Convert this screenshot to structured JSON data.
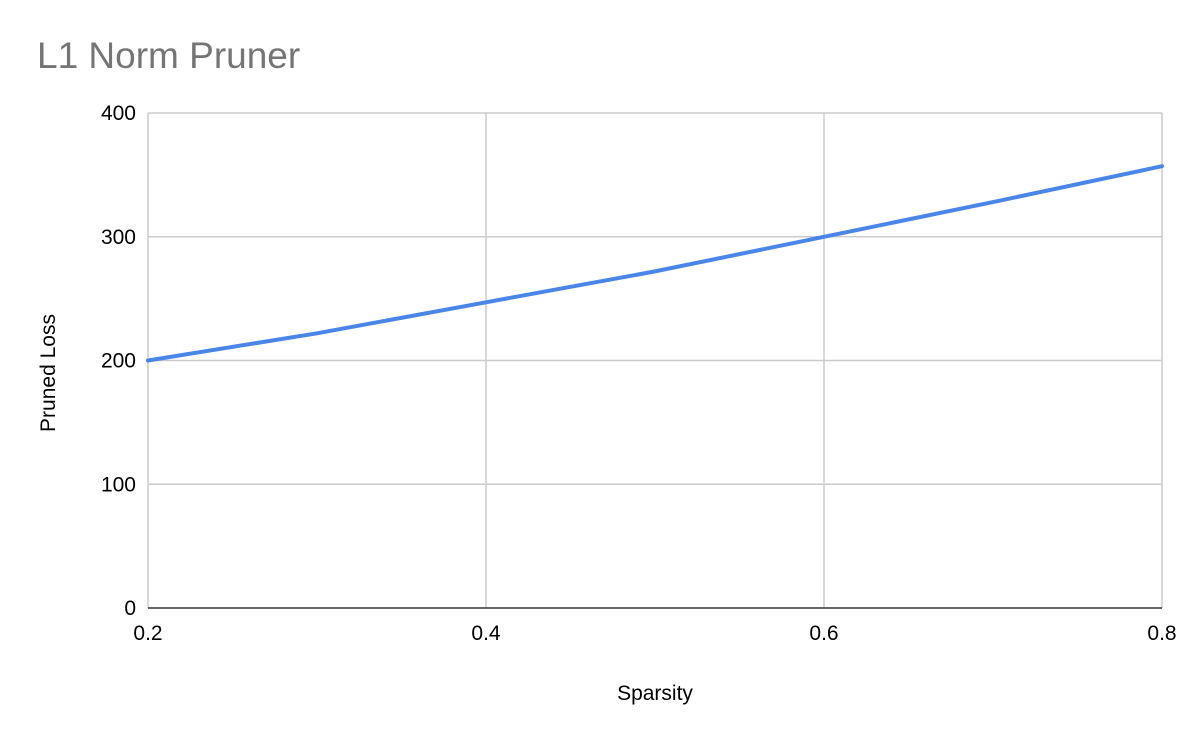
{
  "chart_data": {
    "type": "line",
    "title": "L1 Norm Pruner",
    "xlabel": "Sparsity",
    "ylabel": "Pruned Loss",
    "xlim": [
      0.2,
      0.8
    ],
    "ylim": [
      0,
      400
    ],
    "x_ticks": [
      "0.2",
      "0.4",
      "0.6",
      "0.8"
    ],
    "y_ticks": [
      "0",
      "100",
      "200",
      "300",
      "400"
    ],
    "grid": true,
    "series": [
      {
        "color": "#4a86e8",
        "x": [
          0.2,
          0.3,
          0.4,
          0.5,
          0.6,
          0.7,
          0.8
        ],
        "y": [
          200,
          222,
          247,
          272,
          300,
          328,
          357
        ]
      }
    ]
  }
}
